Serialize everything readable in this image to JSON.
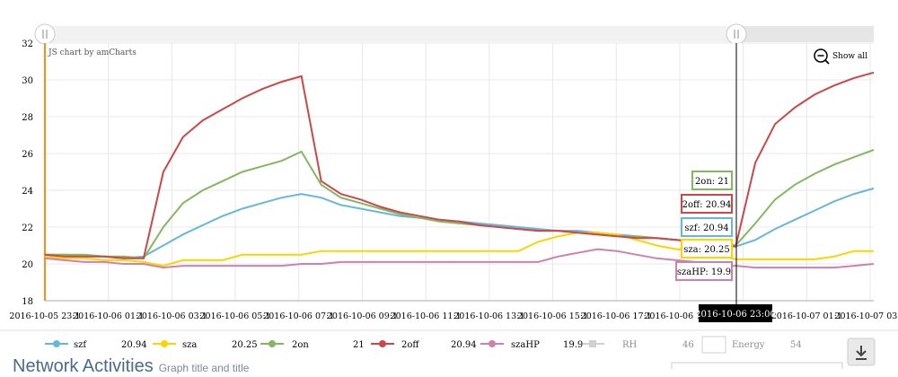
{
  "chart_data": {
    "type": "line",
    "credit": "JS chart by amCharts",
    "zoom_label": "Show all",
    "ylim": [
      18,
      32
    ],
    "yticks": [
      18,
      20,
      22,
      24,
      26,
      28,
      30,
      32
    ],
    "xtick_labels": [
      "2016-10-05 23:1",
      "2016-10-06 01:1",
      "2016-10-06 03:1",
      "2016-10-06 05:1",
      "2016-10-06 07:1",
      "2016-10-06 09:1",
      "2016-10-06 11:1",
      "2016-10-06 13:1",
      "2016-10-06 15:1",
      "2016-10-06 17:1",
      "2016-10-06 19:1",
      "2016-10-06 2",
      "2016-10-07 01:1",
      "2016-10-07 03:1"
    ],
    "cursor_label": "2016-10-06 23:00",
    "grid": true,
    "legend_position": "bottom",
    "series": [
      {
        "name": "szf",
        "color": "#67b7dc",
        "legend_value": "20.94",
        "balloon": "szf: 20.94",
        "values": [
          20.5,
          20.5,
          20.4,
          20.4,
          20.3,
          20.4,
          21,
          21.6,
          22.1,
          22.6,
          23,
          23.3,
          23.6,
          23.8,
          23.6,
          23.2,
          23,
          22.8,
          22.6,
          22.5,
          22.4,
          22.3,
          22.2,
          22.1,
          22,
          21.9,
          21.8,
          21.8,
          21.7,
          21.6,
          21.5,
          21.4,
          21.3,
          21.2,
          21.1,
          20.94,
          21.3,
          21.9,
          22.4,
          22.9,
          23.4,
          23.8,
          24.1
        ]
      },
      {
        "name": "sza",
        "color": "#fdd400",
        "legend_value": "20.25",
        "balloon": "sza: 20.25",
        "values": [
          20.4,
          20.3,
          20.3,
          20.2,
          20.2,
          20.1,
          19.9,
          20.2,
          20.2,
          20.2,
          20.5,
          20.5,
          20.5,
          20.5,
          20.7,
          20.7,
          20.7,
          20.7,
          20.7,
          20.7,
          20.7,
          20.7,
          20.7,
          20.7,
          20.7,
          21.2,
          21.5,
          21.7,
          21.7,
          21.6,
          21.3,
          21,
          20.8,
          20.7,
          20.5,
          20.25,
          20.25,
          20.25,
          20.25,
          20.25,
          20.4,
          20.7,
          20.7
        ]
      },
      {
        "name": "2on",
        "color": "#84b761",
        "legend_value": "21",
        "balloon": "2on: 21",
        "values": [
          20.5,
          20.5,
          20.5,
          20.4,
          20.4,
          20.3,
          22,
          23.3,
          24,
          24.5,
          25,
          25.3,
          25.6,
          26.1,
          24.3,
          23.6,
          23.3,
          23,
          22.7,
          22.5,
          22.3,
          22.2,
          22.1,
          22,
          21.9,
          21.8,
          21.8,
          21.7,
          21.6,
          21.5,
          21.5,
          21.4,
          21.3,
          21.2,
          21.1,
          21,
          22.2,
          23.5,
          24.3,
          24.9,
          25.4,
          25.8,
          26.2
        ]
      },
      {
        "name": "2off",
        "color": "#cc4748",
        "legend_value": "20.94",
        "balloon": "2off: 20.94",
        "values": [
          20.5,
          20.4,
          20.4,
          20.4,
          20.3,
          20.3,
          25,
          26.9,
          27.8,
          28.4,
          29,
          29.5,
          29.9,
          30.2,
          24.5,
          23.8,
          23.5,
          23.1,
          22.8,
          22.6,
          22.4,
          22.3,
          22.1,
          22,
          21.9,
          21.8,
          21.8,
          21.7,
          21.6,
          21.5,
          21.4,
          21.4,
          21.3,
          21.2,
          21.1,
          20.94,
          25.5,
          27.6,
          28.5,
          29.2,
          29.7,
          30.1,
          30.4
        ]
      },
      {
        "name": "szaHP",
        "color": "#cd82ad",
        "legend_value": "19.9",
        "balloon": "szaHP: 19.9",
        "values": [
          20.3,
          20.2,
          20.1,
          20.1,
          20,
          20,
          19.8,
          19.9,
          19.9,
          19.9,
          19.9,
          19.9,
          19.9,
          20,
          20,
          20.1,
          20.1,
          20.1,
          20.1,
          20.1,
          20.1,
          20.1,
          20.1,
          20.1,
          20.1,
          20.1,
          20.4,
          20.6,
          20.8,
          20.7,
          20.5,
          20.3,
          20.2,
          20.1,
          19.9,
          19.9,
          19.8,
          19.8,
          19.8,
          19.8,
          19.8,
          19.9,
          20
        ]
      }
    ],
    "legend_extra": [
      {
        "name": "RH",
        "value": "46"
      },
      {
        "name": "Energy",
        "value": "54"
      }
    ]
  },
  "footer": {
    "title": "Network Activities",
    "subtitle": "Graph title and title"
  }
}
